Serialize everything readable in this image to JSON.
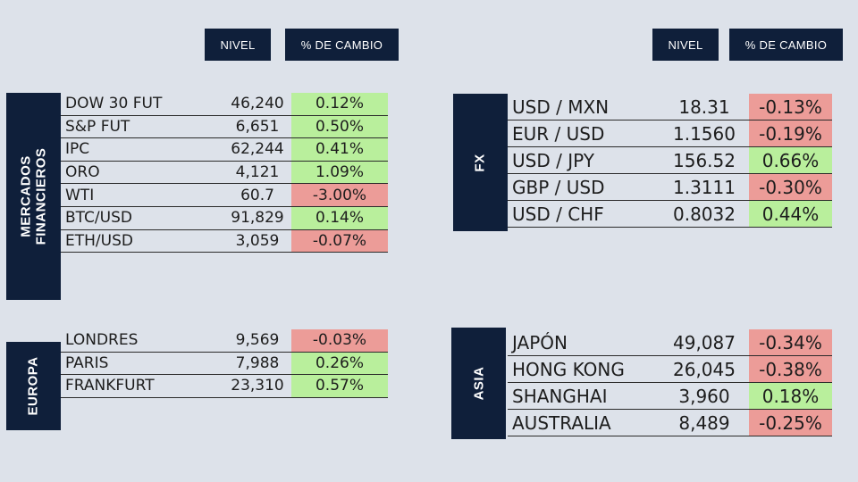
{
  "headers": {
    "level": "NIVEL",
    "change": "% DE CAMBIO"
  },
  "sections": {
    "mercados": {
      "label": "MERCADOS\nFINANCIEROS",
      "rows": [
        {
          "name": "DOW 30 FUT",
          "level": "46,240",
          "change": "0.12%"
        },
        {
          "name": "S&P FUT",
          "level": "6,651",
          "change": "0.50%"
        },
        {
          "name": "IPC",
          "level": "62,244",
          "change": "0.41%"
        },
        {
          "name": "ORO",
          "level": "4,121",
          "change": "1.09%"
        },
        {
          "name": "WTI",
          "level": "60.7",
          "change": "-3.00%"
        },
        {
          "name": "BTC/USD",
          "level": "91,829",
          "change": "0.14%"
        },
        {
          "name": "ETH/USD",
          "level": "3,059",
          "change": "-0.07%"
        }
      ]
    },
    "europa": {
      "label": "EUROPA",
      "rows": [
        {
          "name": "LONDRES",
          "level": "9,569",
          "change": "-0.03%"
        },
        {
          "name": "PARIS",
          "level": "7,988",
          "change": "0.26%"
        },
        {
          "name": "FRANKFURT",
          "level": "23,310",
          "change": "0.57%"
        }
      ]
    },
    "fx": {
      "label": "FX",
      "rows": [
        {
          "name": "USD / MXN",
          "level": "18.31",
          "change": "-0.13%"
        },
        {
          "name": "EUR / USD",
          "level": "1.1560",
          "change": "-0.19%"
        },
        {
          "name": "USD / JPY",
          "level": "156.52",
          "change": "0.66%"
        },
        {
          "name": "GBP / USD",
          "level": "1.3111",
          "change": "-0.30%"
        },
        {
          "name": "USD / CHF",
          "level": "0.8032",
          "change": "0.44%"
        }
      ]
    },
    "asia": {
      "label": "ASIA",
      "rows": [
        {
          "name": "JAPÓN",
          "level": "49,087",
          "change": "-0.34%"
        },
        {
          "name": "HONG KONG",
          "level": "26,045",
          "change": "-0.38%"
        },
        {
          "name": "SHANGHAI",
          "level": "3,960",
          "change": "0.18%"
        },
        {
          "name": "AUSTRALIA",
          "level": "8,489",
          "change": "-0.25%"
        }
      ]
    }
  },
  "colors": {
    "background": "#dde2ea",
    "navy": "#0f1f3a",
    "positive": "#b9ef9c",
    "negative": "#ec9c98"
  }
}
